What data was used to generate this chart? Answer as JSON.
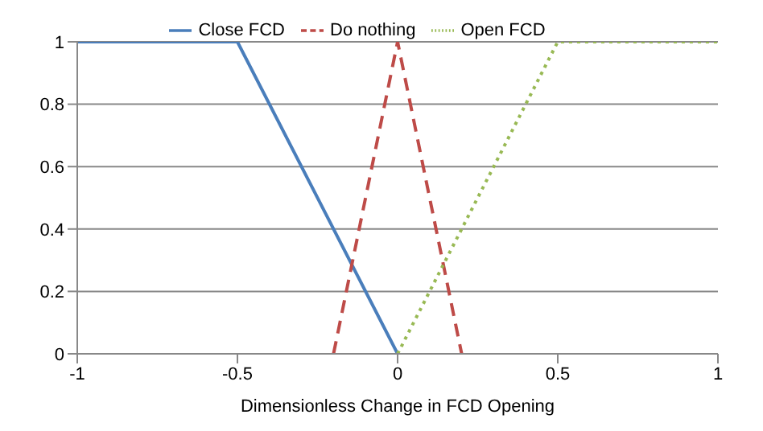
{
  "chart_data": {
    "type": "line",
    "xlabel": "Dimensionless Change in FCD Opening",
    "xlim": [
      -1,
      1
    ],
    "xticks": [
      -1,
      -0.5,
      0,
      0.5,
      1
    ],
    "ylim": [
      0,
      1
    ],
    "yticks": [
      0,
      0.2,
      0.4,
      0.6,
      0.8,
      1
    ],
    "grid": "y",
    "legend": "top",
    "marker": "none",
    "series": [
      {
        "name": "Close FCD",
        "color": "#4a7ebb",
        "line_style": "solid",
        "x": [
          -1,
          -0.5,
          0
        ],
        "values": [
          1,
          1,
          0
        ]
      },
      {
        "name": "Do nothing",
        "color": "#be4b48",
        "line_style": "dashed",
        "x": [
          -0.2,
          0,
          0.2
        ],
        "values": [
          0,
          1,
          0
        ]
      },
      {
        "name": "Open FCD",
        "color": "#98b954",
        "line_style": "dotted",
        "x": [
          0,
          0.5,
          1
        ],
        "values": [
          0,
          1,
          1
        ]
      }
    ]
  }
}
